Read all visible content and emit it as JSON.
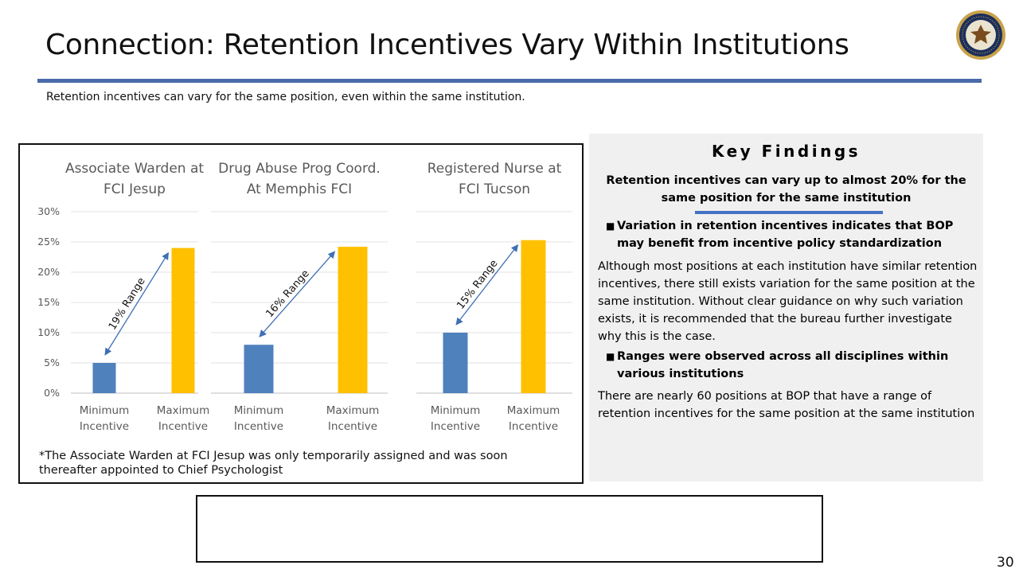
{
  "slide": {
    "title": "Connection: Retention Incentives Vary Within Institutions",
    "subtitle": "Retention incentives can vary for the same position, even within the same institution.",
    "page_number": "30",
    "seal_icon": "doj-seal-icon",
    "rule_color": "#4a6aaa"
  },
  "chart_data": [
    {
      "type": "bar",
      "title": "Associate Warden at FCI Jesup",
      "categories": [
        "Minimum Incentive",
        "Maximum Incentive"
      ],
      "values": [
        0.05,
        0.24
      ],
      "colors": [
        "#4f81bd",
        "#ffc000"
      ],
      "ylim": [
        0,
        0.3
      ],
      "yticks": [
        "0%",
        "5%",
        "10%",
        "15%",
        "20%",
        "25%",
        "30%"
      ],
      "annotation": "19% Range",
      "grid": true
    },
    {
      "type": "bar",
      "title": "Drug Abuse Prog Coord. At Memphis FCI",
      "categories": [
        "Minimum Incentive",
        "Maximum Incentive"
      ],
      "values": [
        0.08,
        0.242
      ],
      "colors": [
        "#4f81bd",
        "#ffc000"
      ],
      "ylim": [
        0,
        0.3
      ],
      "annotation": "16% Range",
      "grid": true
    },
    {
      "type": "bar",
      "title": "Registered Nurse at FCI Tucson",
      "categories": [
        "Minimum Incentive",
        "Maximum Incentive"
      ],
      "values": [
        0.1,
        0.253
      ],
      "colors": [
        "#4f81bd",
        "#ffc000"
      ],
      "ylim": [
        0,
        0.3
      ],
      "annotation": "15% Range",
      "grid": true
    }
  ],
  "chart_panel": {
    "footnote": "*The Associate Warden at FCI Jesup was only temporarily assigned and was soon thereafter appointed to Chief Psychologist"
  },
  "key_findings": {
    "heading": "Key Findings",
    "lead": "Retention incentives can vary up to almost 20% for the same position for the same institution",
    "accent_color": "#4472c4",
    "bullet1": "Variation in retention incentives indicates that BOP may benefit from incentive policy standardization",
    "body1": "Although most positions at each institution have similar retention incentives, there still exists variation for the same position at the same institution. Without clear guidance on why such variation exists, it is recommended that the bureau further investigate why this is the case.",
    "bullet2": "Ranges were observed across all disciplines within various institutions",
    "body2": "There are nearly 60 positions at BOP that have a range of retention incentives for the same position at the same institution"
  }
}
